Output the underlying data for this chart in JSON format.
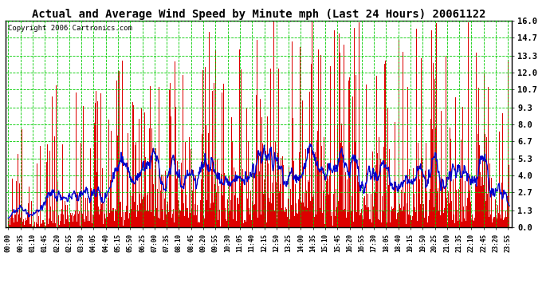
{
  "title": "Actual and Average Wind Speed by Minute mph (Last 24 Hours) 20061122",
  "copyright": "Copyright 2006 Cartronics.com",
  "yticks": [
    0.0,
    1.3,
    2.7,
    4.0,
    5.3,
    6.7,
    8.0,
    9.3,
    10.7,
    12.0,
    13.3,
    14.7,
    16.0
  ],
  "ymax": 16.0,
  "ymin": 0.0,
  "bar_color": "#dd0000",
  "line_color": "#0000cc",
  "grid_color": "#00cc00",
  "bg_color": "#ffffff",
  "plot_bg": "#ffffff",
  "title_fontsize": 10,
  "copyright_fontsize": 6.5,
  "xtick_fontsize": 5.5,
  "ytick_fontsize": 7.5
}
